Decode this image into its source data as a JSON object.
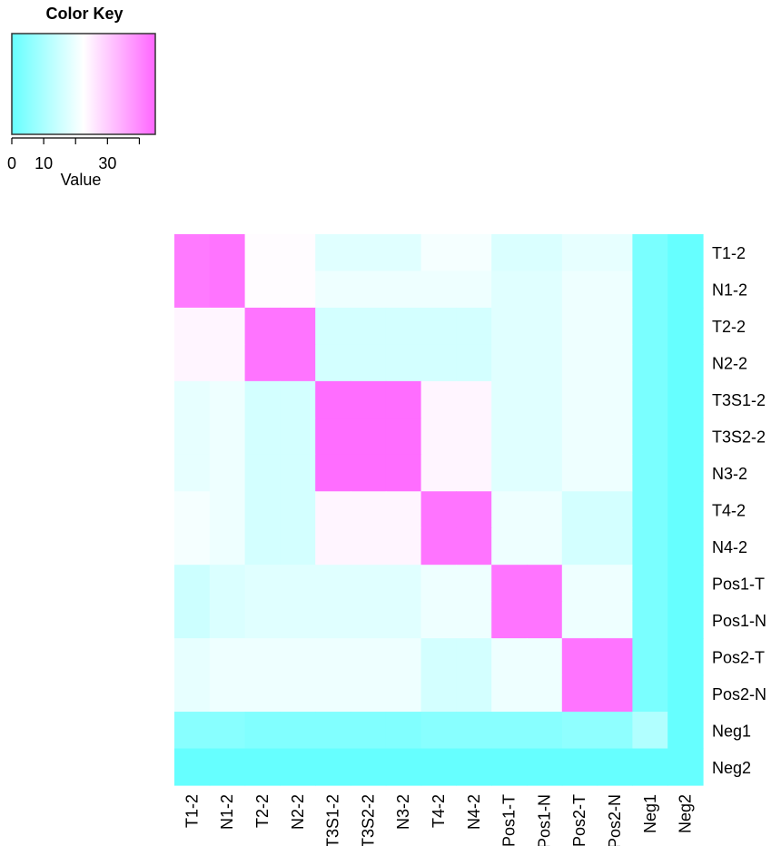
{
  "chart_data": {
    "type": "heatmap",
    "color_key": {
      "title": "Color Key",
      "xlabel": "Value",
      "range": [
        0,
        45
      ],
      "ticks": [
        0,
        10,
        20,
        30,
        40
      ],
      "tick_labels": [
        "0",
        "10",
        "",
        "30",
        ""
      ],
      "colors": {
        "low": "#66FFFF",
        "mid": "#FFFFFF",
        "high": "#FF66FF"
      }
    },
    "rows": [
      "T1-2",
      "N1-2",
      "T2-2",
      "N2-2",
      "T3S1-2",
      "T3S2-2",
      "N3-2",
      "T4-2",
      "N4-2",
      "Pos1-T",
      "Pos1-N",
      "Pos2-T",
      "Pos2-N",
      "Neg1",
      "Neg2"
    ],
    "columns": [
      "T1-2",
      "N1-2",
      "T2-2",
      "N2-2",
      "T3S1-2",
      "T3S2-2",
      "N3-2",
      "T4-2",
      "N4-2",
      "Pos1-T",
      "Pos1-N",
      "Pos2-T",
      "Pos2-N",
      "Neg1",
      "Neg2"
    ],
    "values": [
      [
        42,
        43,
        23,
        23,
        18,
        18,
        18,
        21,
        21,
        17,
        17,
        19,
        19,
        3,
        0
      ],
      [
        42,
        43,
        23,
        23,
        20,
        20,
        20,
        20,
        20,
        18,
        18,
        20,
        20,
        3,
        0
      ],
      [
        24,
        24,
        43,
        43,
        16,
        16,
        16,
        16,
        16,
        18,
        18,
        20,
        20,
        3,
        0
      ],
      [
        24,
        24,
        43,
        43,
        16,
        16,
        16,
        16,
        16,
        18,
        18,
        20,
        20,
        3,
        0
      ],
      [
        19,
        20,
        16,
        16,
        44,
        44,
        44,
        24,
        24,
        18,
        18,
        20,
        20,
        3,
        0
      ],
      [
        19,
        20,
        16,
        16,
        44,
        44,
        44,
        24,
        24,
        18,
        18,
        20,
        20,
        3,
        0
      ],
      [
        19,
        20,
        16,
        16,
        44,
        44,
        44,
        24,
        24,
        18,
        18,
        20,
        20,
        3,
        0
      ],
      [
        21,
        20,
        16,
        16,
        24,
        24,
        24,
        43,
        43,
        20,
        20,
        16,
        16,
        3,
        0
      ],
      [
        21,
        20,
        16,
        16,
        24,
        24,
        24,
        43,
        43,
        20,
        20,
        16,
        16,
        3,
        0
      ],
      [
        15,
        17,
        18,
        18,
        18,
        18,
        18,
        20,
        20,
        43,
        43,
        20,
        20,
        3,
        0
      ],
      [
        15,
        17,
        18,
        18,
        18,
        18,
        18,
        20,
        20,
        43,
        43,
        20,
        20,
        3,
        0
      ],
      [
        19,
        20,
        20,
        20,
        20,
        20,
        20,
        16,
        16,
        20,
        20,
        43,
        43,
        3,
        0
      ],
      [
        19,
        20,
        20,
        20,
        20,
        20,
        20,
        16,
        16,
        20,
        20,
        43,
        43,
        3,
        0
      ],
      [
        5,
        5,
        4,
        4,
        4,
        4,
        4,
        5,
        5,
        5,
        5,
        6,
        6,
        11,
        0
      ],
      [
        0,
        0,
        0,
        0,
        0,
        0,
        0,
        0,
        0,
        0,
        0,
        0,
        0,
        0,
        0
      ]
    ]
  }
}
